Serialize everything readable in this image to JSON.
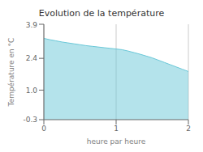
{
  "chart_data": {
    "type": "area",
    "title": "Evolution de la température",
    "xlabel": "heure par heure",
    "ylabel": "Température en °C",
    "x": [
      0.0,
      0.083,
      0.167,
      0.25,
      0.333,
      0.417,
      0.5,
      0.583,
      0.667,
      0.75,
      0.833,
      0.917,
      1.0,
      1.083,
      1.167,
      1.25,
      1.333,
      1.417,
      1.5,
      1.583,
      1.667,
      1.75,
      1.833,
      1.917,
      2.0
    ],
    "values": [
      3.28,
      3.22,
      3.17,
      3.12,
      3.08,
      3.04,
      3.0,
      2.96,
      2.93,
      2.9,
      2.87,
      2.84,
      2.81,
      2.78,
      2.72,
      2.65,
      2.58,
      2.5,
      2.42,
      2.32,
      2.22,
      2.12,
      2.02,
      1.92,
      1.82
    ],
    "xlim": [
      0,
      2
    ],
    "ylim": [
      -0.3,
      3.9
    ],
    "xticks": [
      0,
      1,
      2
    ],
    "yticks": [
      -0.3,
      {
        "value": 1,
        "label": "1.0"
      },
      2.4,
      3.9
    ],
    "color": "#6ac8d8",
    "grid": "x"
  }
}
